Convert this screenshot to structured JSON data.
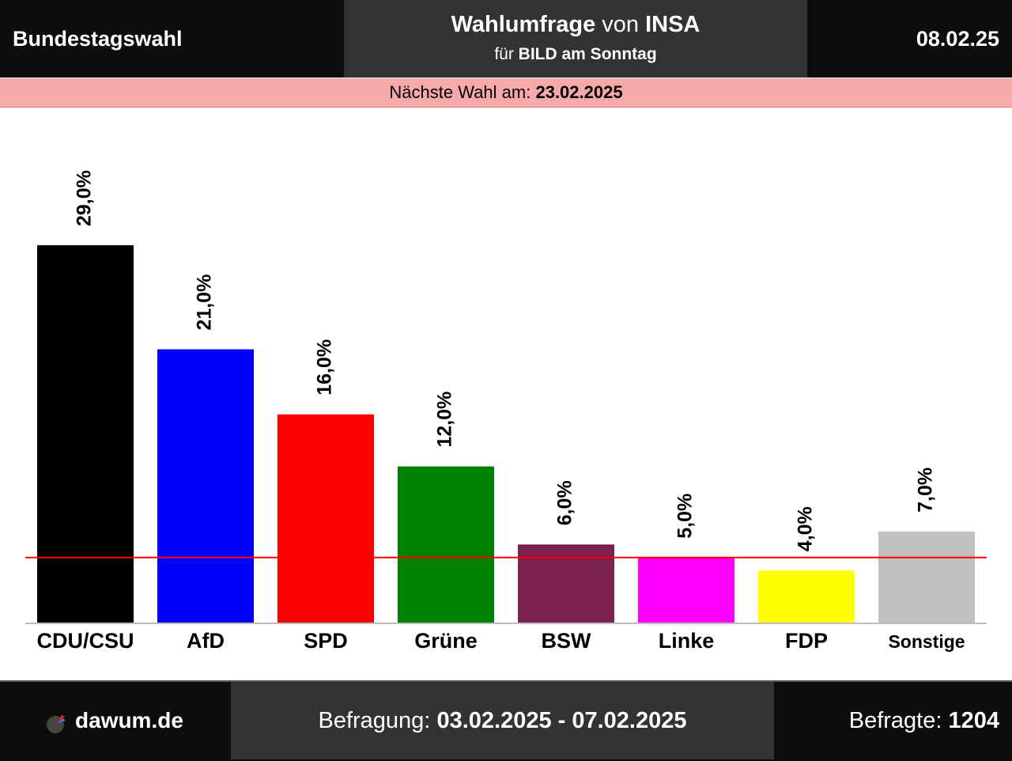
{
  "header": {
    "left_title": "Bundestagswahl",
    "title_bold": "Wahlumfrage",
    "title_von": "von",
    "institute": "INSA",
    "for_label": "für",
    "client": "BILD am Sonntag",
    "date": "08.02.25"
  },
  "next_election": {
    "label": "Nächste Wahl am:",
    "date": "23.02.2025"
  },
  "footer": {
    "site": "dawum.de",
    "survey_label": "Befragung:",
    "survey_period": "03.02.2025 - 07.02.2025",
    "respondents_label": "Befragte:",
    "respondents": "1204"
  },
  "chart_data": {
    "type": "bar",
    "categories": [
      "CDU/CSU",
      "AfD",
      "SPD",
      "Grüne",
      "BSW",
      "Linke",
      "FDP",
      "Sonstige"
    ],
    "values": [
      29.0,
      21.0,
      16.0,
      12.0,
      6.0,
      5.0,
      4.0,
      7.0
    ],
    "value_labels": [
      "29,0%",
      "21,0%",
      "16,0%",
      "12,0%",
      "6,0%",
      "5,0%",
      "4,0%",
      "7,0%"
    ],
    "colors": [
      "#000000",
      "#0000ff",
      "#ff0000",
      "#008000",
      "#7b2250",
      "#ff00ff",
      "#ffff00",
      "#c0c0c0"
    ],
    "threshold": 5.0,
    "threshold_color": "#ff0000",
    "ylim": [
      0,
      29.0
    ],
    "grid": false,
    "legend": "none"
  }
}
